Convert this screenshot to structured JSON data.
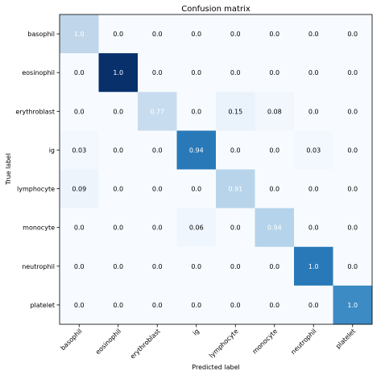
{
  "chart_data": {
    "type": "heatmap",
    "title": "Confusion matrix",
    "xlabel": "Predicted label",
    "ylabel": "True label",
    "x_categories": [
      "basophil",
      "eosinophil",
      "erythroblast",
      "ig",
      "lymphocyte",
      "monocyte",
      "neutrophil",
      "platelet"
    ],
    "y_categories": [
      "basophil",
      "eosinophil",
      "erythroblast",
      "ig",
      "lymphocyte",
      "monocyte",
      "neutrophil",
      "platelet"
    ],
    "values": [
      [
        1.0,
        0.0,
        0.0,
        0.0,
        0.0,
        0.0,
        0.0,
        0.0
      ],
      [
        0.0,
        1.0,
        0.0,
        0.0,
        0.0,
        0.0,
        0.0,
        0.0
      ],
      [
        0.0,
        0.0,
        0.77,
        0.0,
        0.15,
        0.08,
        0.0,
        0.0
      ],
      [
        0.03,
        0.0,
        0.0,
        0.94,
        0.0,
        0.0,
        0.03,
        0.0
      ],
      [
        0.09,
        0.0,
        0.0,
        0.0,
        0.91,
        0.0,
        0.0,
        0.0
      ],
      [
        0.0,
        0.0,
        0.0,
        0.06,
        0.0,
        0.94,
        0.0,
        0.0
      ],
      [
        0.0,
        0.0,
        0.0,
        0.0,
        0.0,
        0.0,
        1.0,
        0.0
      ],
      [
        0.0,
        0.0,
        0.0,
        0.0,
        0.0,
        0.0,
        0.0,
        1.0
      ]
    ],
    "cell_labels": [
      [
        "1.0",
        "0.0",
        "0.0",
        "0.0",
        "0.0",
        "0.0",
        "0.0",
        "0.0"
      ],
      [
        "0.0",
        "1.0",
        "0.0",
        "0.0",
        "0.0",
        "0.0",
        "0.0",
        "0.0"
      ],
      [
        "0.0",
        "0.0",
        "0.77",
        "0.0",
        "0.15",
        "0.08",
        "0.0",
        "0.0"
      ],
      [
        "0.03",
        "0.0",
        "0.0",
        "0.94",
        "0.0",
        "0.0",
        "0.03",
        "0.0"
      ],
      [
        "0.09",
        "0.0",
        "0.0",
        "0.0",
        "0.91",
        "0.0",
        "0.0",
        "0.0"
      ],
      [
        "0.0",
        "0.0",
        "0.0",
        "0.06",
        "0.0",
        "0.94",
        "0.0",
        "0.0"
      ],
      [
        "0.0",
        "0.0",
        "0.0",
        "0.0",
        "0.0",
        "0.0",
        "1.0",
        "0.0"
      ],
      [
        "0.0",
        "0.0",
        "0.0",
        "0.0",
        "0.0",
        "0.0",
        "0.0",
        "1.0"
      ]
    ],
    "cell_colors": [
      [
        "#c0d6ea",
        "#f7fbff",
        "#f7fbff",
        "#f7fbff",
        "#f7fbff",
        "#f7fbff",
        "#f7fbff",
        "#f7fbff"
      ],
      [
        "#f7fbff",
        "#08306b",
        "#f7fbff",
        "#f7fbff",
        "#f7fbff",
        "#f7fbff",
        "#f7fbff",
        "#f7fbff"
      ],
      [
        "#f7fbff",
        "#f7fbff",
        "#c8dcef",
        "#f7fbff",
        "#eaf2fb",
        "#f1f7fd",
        "#f7fbff",
        "#f7fbff"
      ],
      [
        "#f3f8fe",
        "#f7fbff",
        "#f7fbff",
        "#2979b9",
        "#f7fbff",
        "#f7fbff",
        "#f3f8fe",
        "#f7fbff"
      ],
      [
        "#edf4fc",
        "#f7fbff",
        "#f7fbff",
        "#f7fbff",
        "#b8d4ea",
        "#f7fbff",
        "#f7fbff",
        "#f7fbff"
      ],
      [
        "#f7fbff",
        "#f7fbff",
        "#f7fbff",
        "#f0f6fd",
        "#f7fbff",
        "#b5d3ea",
        "#f7fbff",
        "#f7fbff"
      ],
      [
        "#f7fbff",
        "#f7fbff",
        "#f7fbff",
        "#f7fbff",
        "#f7fbff",
        "#f7fbff",
        "#2979b9",
        "#f7fbff"
      ],
      [
        "#f7fbff",
        "#f7fbff",
        "#f7fbff",
        "#f7fbff",
        "#f7fbff",
        "#f7fbff",
        "#f7fbff",
        "#3d8bc4"
      ]
    ],
    "color_threshold": 0.5,
    "text_color_light": "#ffffff",
    "text_color_dark": "#000000",
    "colormap": "Blues",
    "grid": false,
    "legend": "none"
  }
}
